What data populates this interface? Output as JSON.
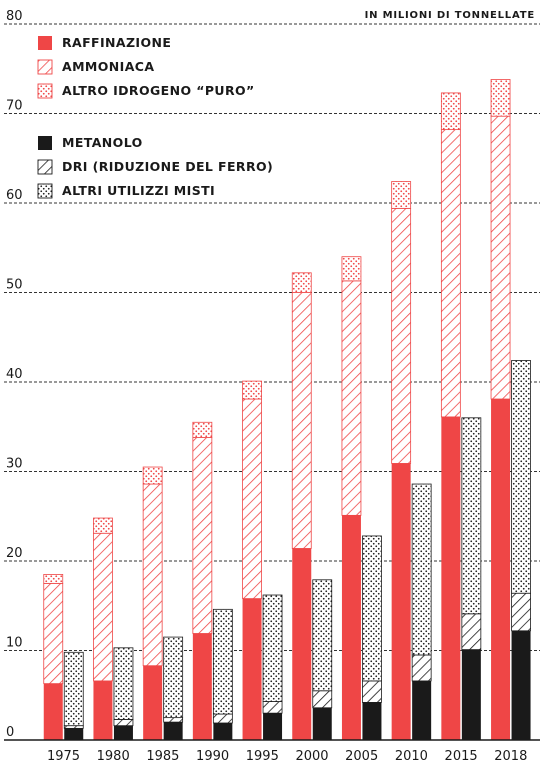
{
  "chart_data": {
    "type": "bar",
    "stacked": true,
    "grouped": true,
    "unit_label": "IN MILIONI DI TONNELLATE",
    "categories": [
      "1975",
      "1980",
      "1985",
      "1990",
      "1995",
      "2000",
      "2005",
      "2010",
      "2015",
      "2018"
    ],
    "ylim": [
      0,
      80
    ],
    "yticks": [
      0,
      10,
      20,
      30,
      40,
      50,
      60,
      70,
      80
    ],
    "grid": true,
    "legend_position": "top-left",
    "groups": [
      {
        "series": [
          {
            "name": "RAFFINAZIONE",
            "values": [
              6.3,
              6.6,
              8.3,
              11.9,
              15.8,
              21.4,
              25.1,
              30.9,
              36.1,
              38.1
            ]
          },
          {
            "name": "AMMONIACA",
            "values": [
              11.2,
              16.5,
              20.3,
              21.9,
              22.3,
              28.6,
              26.2,
              28.5,
              32.1,
              31.6
            ]
          },
          {
            "name": "ALTRO IDROGENO “PURO”",
            "values": [
              1.0,
              1.7,
              1.9,
              1.7,
              2.0,
              2.2,
              2.7,
              3.0,
              4.1,
              4.1
            ]
          }
        ]
      },
      {
        "series": [
          {
            "name": "METANOLO",
            "values": [
              1.3,
              1.6,
              2.0,
              1.9,
              3.0,
              3.6,
              4.2,
              6.6,
              10.1,
              12.2
            ]
          },
          {
            "name": "DRI (RIDUZIONE DEL FERRO)",
            "values": [
              0.3,
              0.7,
              0.5,
              1.0,
              1.3,
              1.9,
              2.4,
              2.9,
              4.0,
              4.2
            ]
          },
          {
            "name": "ALTRI UTILIZZI MISTI",
            "values": [
              8.2,
              8.0,
              9.0,
              11.7,
              11.9,
              12.4,
              16.2,
              19.1,
              21.9,
              26.0
            ]
          }
        ]
      }
    ]
  },
  "legend": [
    {
      "label": "RAFFINAZIONE",
      "fill": "solid-red"
    },
    {
      "label": "AMMONIACA",
      "fill": "hatch-red"
    },
    {
      "label": "ALTRO IDROGENO “PURO”",
      "fill": "dots-red"
    },
    {
      "label": "METANOLO",
      "fill": "solid-black"
    },
    {
      "label": "DRI (RIDUZIONE DEL FERRO)",
      "fill": "hatch-black"
    },
    {
      "label": "ALTRI UTILIZZI MISTI",
      "fill": "dots-black"
    }
  ],
  "colors": {
    "red": "#ef4646",
    "black": "#1a1a1a",
    "grid": "#333333"
  }
}
